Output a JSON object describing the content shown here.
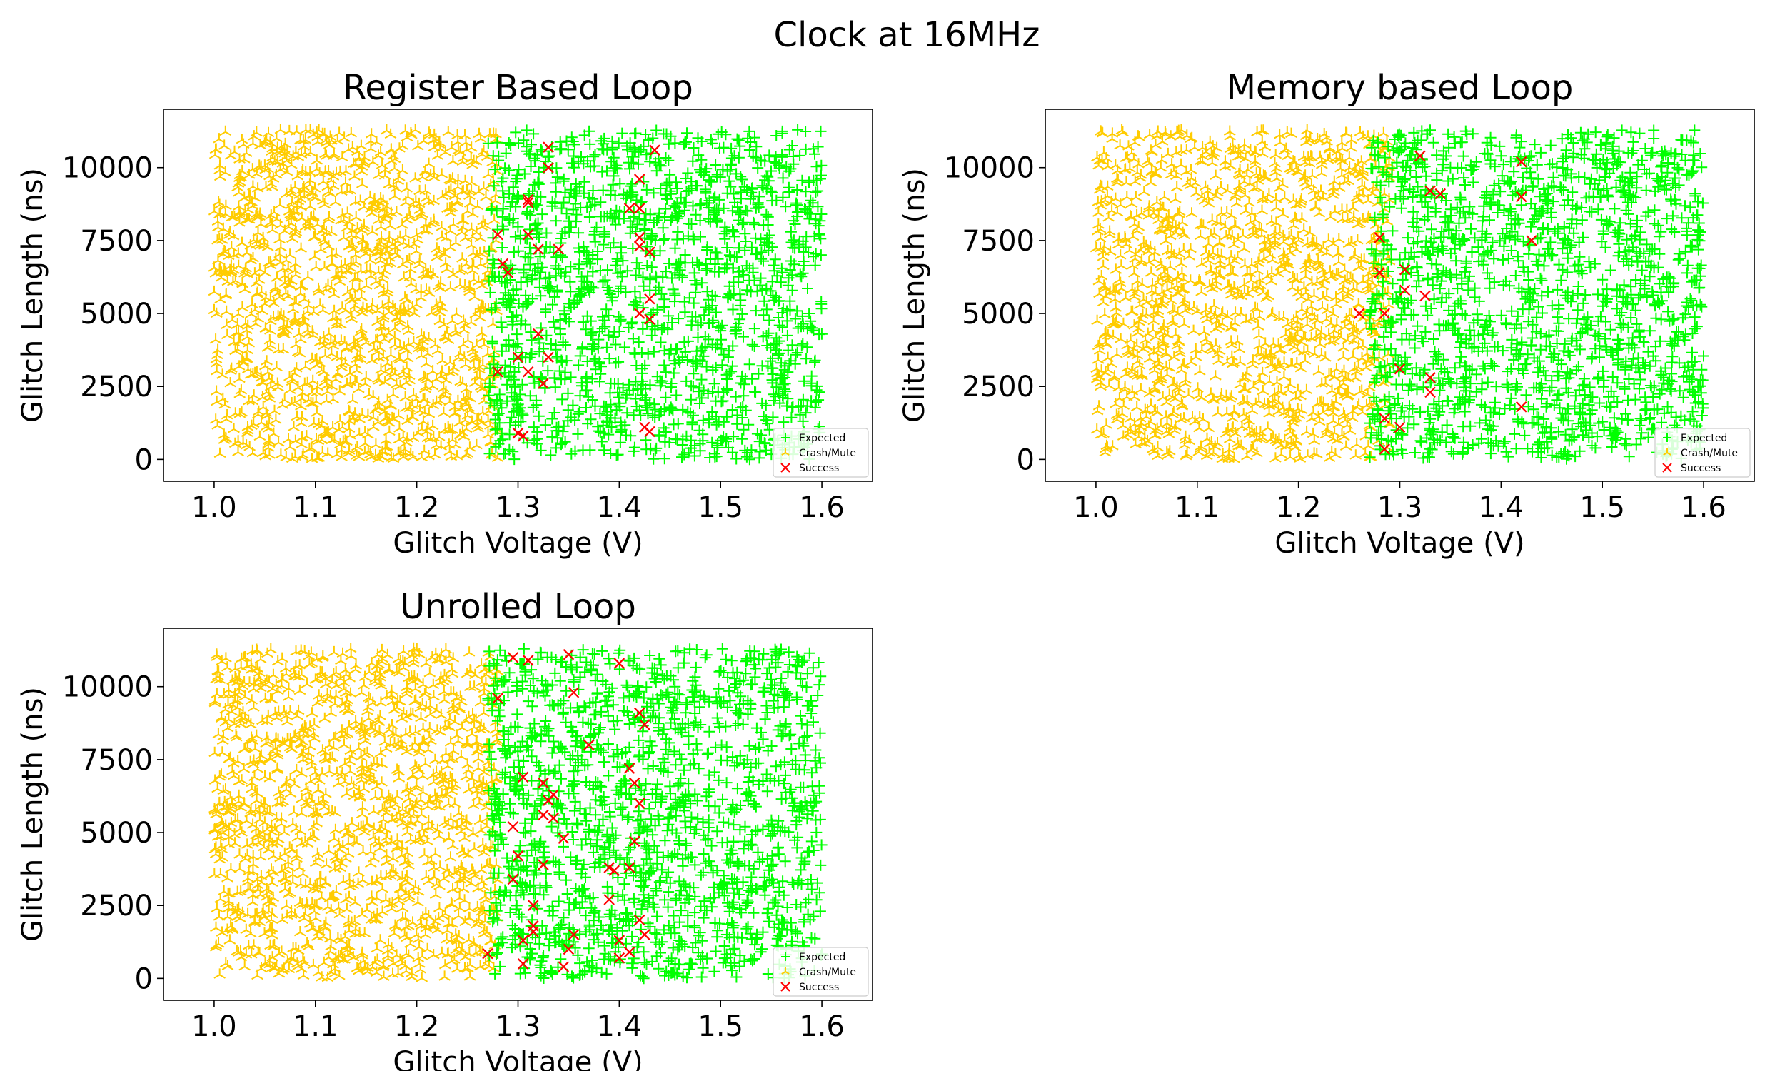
{
  "suptitle": "Clock at 16MHz",
  "legend_labels": {
    "expected": "Expected",
    "crash": "Crash/Mute",
    "success": "Success"
  },
  "colors": {
    "expected": "#00ff00",
    "crash": "#ffcc00",
    "success": "#ff0000"
  },
  "chart_data": [
    {
      "type": "scatter",
      "title": "Register Based Loop",
      "xlabel": "Glitch Voltage (V)",
      "ylabel": "Glitch Length (ns)",
      "xlim": [
        0.95,
        1.65
      ],
      "ylim": [
        -750,
        12000
      ],
      "xticks": [
        1.0,
        1.1,
        1.2,
        1.3,
        1.4,
        1.5,
        1.6
      ],
      "yticks": [
        0,
        2500,
        5000,
        7500,
        10000
      ],
      "legend": "lower-right",
      "series_regions": {
        "crash": {
          "x": [
            1.0,
            1.28
          ],
          "y": [
            0,
            11300
          ]
        },
        "expected": {
          "x": [
            1.27,
            1.6
          ],
          "y": [
            0,
            11300
          ]
        }
      },
      "success": [
        [
          1.33,
          10700
        ],
        [
          1.435,
          10600
        ],
        [
          1.33,
          10000
        ],
        [
          1.42,
          9600
        ],
        [
          1.31,
          8900
        ],
        [
          1.31,
          8800
        ],
        [
          1.41,
          8600
        ],
        [
          1.42,
          8600
        ],
        [
          1.28,
          7700
        ],
        [
          1.31,
          7700
        ],
        [
          1.42,
          7600
        ],
        [
          1.42,
          7300
        ],
        [
          1.32,
          7200
        ],
        [
          1.34,
          7200
        ],
        [
          1.43,
          7100
        ],
        [
          1.285,
          6700
        ],
        [
          1.29,
          6400
        ],
        [
          1.43,
          5500
        ],
        [
          1.42,
          5000
        ],
        [
          1.43,
          4800
        ],
        [
          1.32,
          4300
        ],
        [
          1.3,
          3500
        ],
        [
          1.33,
          3500
        ],
        [
          1.28,
          3000
        ],
        [
          1.31,
          3000
        ],
        [
          1.325,
          2600
        ],
        [
          1.425,
          1100
        ],
        [
          1.3,
          900
        ],
        [
          1.305,
          800
        ],
        [
          1.43,
          950
        ]
      ]
    },
    {
      "type": "scatter",
      "title": "Memory based Loop",
      "xlabel": "Glitch Voltage (V)",
      "ylabel": "Glitch Length (ns)",
      "xlim": [
        0.95,
        1.65
      ],
      "ylim": [
        -750,
        12000
      ],
      "xticks": [
        1.0,
        1.1,
        1.2,
        1.3,
        1.4,
        1.5,
        1.6
      ],
      "yticks": [
        0,
        2500,
        5000,
        7500,
        10000
      ],
      "legend": "lower-right",
      "series_regions": {
        "crash": {
          "x": [
            1.0,
            1.29
          ],
          "y": [
            0,
            11300
          ]
        },
        "expected": {
          "x": [
            1.27,
            1.6
          ],
          "y": [
            0,
            11300
          ]
        }
      },
      "success": [
        [
          1.32,
          10400
        ],
        [
          1.42,
          10200
        ],
        [
          1.33,
          9200
        ],
        [
          1.34,
          9100
        ],
        [
          1.42,
          9000
        ],
        [
          1.28,
          7600
        ],
        [
          1.43,
          7500
        ],
        [
          1.305,
          6500
        ],
        [
          1.28,
          6400
        ],
        [
          1.305,
          5800
        ],
        [
          1.325,
          5600
        ],
        [
          1.26,
          5000
        ],
        [
          1.285,
          5000
        ],
        [
          1.3,
          3100
        ],
        [
          1.33,
          2800
        ],
        [
          1.33,
          2300
        ],
        [
          1.42,
          1800
        ],
        [
          1.285,
          1400
        ],
        [
          1.3,
          1100
        ],
        [
          1.285,
          350
        ]
      ]
    },
    {
      "type": "scatter",
      "title": "Unrolled Loop",
      "xlabel": "Glitch Voltage (V)",
      "ylabel": "Glitch Length (ns)",
      "xlim": [
        0.95,
        1.65
      ],
      "ylim": [
        -750,
        12000
      ],
      "xticks": [
        1.0,
        1.1,
        1.2,
        1.3,
        1.4,
        1.5,
        1.6
      ],
      "yticks": [
        0,
        2500,
        5000,
        7500,
        10000
      ],
      "legend": "lower-right",
      "series_regions": {
        "crash": {
          "x": [
            1.0,
            1.28
          ],
          "y": [
            0,
            11300
          ]
        },
        "expected": {
          "x": [
            1.27,
            1.6
          ],
          "y": [
            0,
            11300
          ]
        }
      },
      "success": [
        [
          1.295,
          11000
        ],
        [
          1.31,
          10900
        ],
        [
          1.35,
          11100
        ],
        [
          1.4,
          10800
        ],
        [
          1.28,
          9600
        ],
        [
          1.355,
          9800
        ],
        [
          1.42,
          9100
        ],
        [
          1.425,
          8700
        ],
        [
          1.37,
          8000
        ],
        [
          1.41,
          7200
        ],
        [
          1.415,
          6700
        ],
        [
          1.305,
          6900
        ],
        [
          1.325,
          6700
        ],
        [
          1.335,
          6300
        ],
        [
          1.33,
          6100
        ],
        [
          1.42,
          6000
        ],
        [
          1.325,
          5600
        ],
        [
          1.335,
          5500
        ],
        [
          1.295,
          5200
        ],
        [
          1.345,
          4800
        ],
        [
          1.415,
          4700
        ],
        [
          1.3,
          4200
        ],
        [
          1.325,
          3900
        ],
        [
          1.39,
          3800
        ],
        [
          1.395,
          3700
        ],
        [
          1.41,
          3800
        ],
        [
          1.295,
          3400
        ],
        [
          1.39,
          2700
        ],
        [
          1.315,
          2500
        ],
        [
          1.42,
          2000
        ],
        [
          1.315,
          1800
        ],
        [
          1.315,
          1600
        ],
        [
          1.355,
          1500
        ],
        [
          1.425,
          1500
        ],
        [
          1.305,
          1300
        ],
        [
          1.4,
          1300
        ],
        [
          1.35,
          1000
        ],
        [
          1.41,
          900
        ],
        [
          1.27,
          850
        ],
        [
          1.4,
          700
        ],
        [
          1.305,
          500
        ],
        [
          1.345,
          400
        ]
      ]
    }
  ]
}
